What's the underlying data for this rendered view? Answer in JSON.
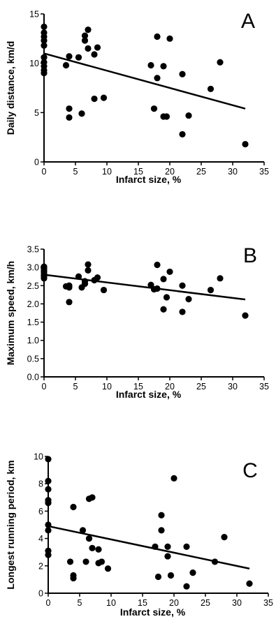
{
  "chart_data": [
    {
      "type": "scatter",
      "panel_label": "A",
      "xlabel": "Infarct size, %",
      "ylabel": "Daily distance, km/d",
      "xlim": [
        0,
        35
      ],
      "ylim": [
        0,
        15
      ],
      "xticks": [
        "0",
        "5",
        "10",
        "15",
        "20",
        "25",
        "30",
        "35"
      ],
      "yticks": [
        "0",
        "5",
        "10",
        "15"
      ],
      "points": [
        [
          0,
          13.7
        ],
        [
          0,
          13.1
        ],
        [
          0,
          12.7
        ],
        [
          0,
          12.3
        ],
        [
          0,
          11.8
        ],
        [
          0,
          10.6
        ],
        [
          0,
          10.1
        ],
        [
          0,
          9.7
        ],
        [
          0,
          9.3
        ],
        [
          0,
          9.0
        ],
        [
          3.5,
          9.8
        ],
        [
          4,
          10.7
        ],
        [
          4,
          5.4
        ],
        [
          4,
          4.5
        ],
        [
          5.5,
          10.6
        ],
        [
          6,
          4.9
        ],
        [
          6.5,
          12.8
        ],
        [
          6.5,
          12.3
        ],
        [
          7,
          13.4
        ],
        [
          7,
          11.5
        ],
        [
          8,
          10.9
        ],
        [
          8.5,
          11.6
        ],
        [
          8,
          6.4
        ],
        [
          9.5,
          6.5
        ],
        [
          17,
          9.8
        ],
        [
          17.5,
          5.4
        ],
        [
          18,
          12.7
        ],
        [
          18,
          8.5
        ],
        [
          19,
          9.7
        ],
        [
          19,
          4.6
        ],
        [
          19.5,
          4.6
        ],
        [
          20,
          12.5
        ],
        [
          22,
          8.9
        ],
        [
          22,
          2.8
        ],
        [
          23,
          4.7
        ],
        [
          26.5,
          7.4
        ],
        [
          28,
          10.1
        ],
        [
          32,
          1.8
        ]
      ],
      "fit_line": {
        "x": [
          0,
          32
        ],
        "y": [
          11.0,
          5.4
        ]
      }
    },
    {
      "type": "scatter",
      "panel_label": "B",
      "xlabel": "Infarct size, %",
      "ylabel": "Maximum speed, km/h",
      "xlim": [
        0,
        35
      ],
      "ylim": [
        0,
        3.5
      ],
      "xticks": [
        "0",
        "5",
        "10",
        "15",
        "20",
        "25",
        "30",
        "35"
      ],
      "yticks": [
        "0.0",
        "0.5",
        "1.0",
        "1.5",
        "2.0",
        "2.5",
        "3.0",
        "3.5"
      ],
      "points": [
        [
          0,
          3.02
        ],
        [
          0,
          2.97
        ],
        [
          0,
          2.92
        ],
        [
          0,
          2.88
        ],
        [
          0,
          2.83
        ],
        [
          0,
          2.78
        ],
        [
          0,
          2.74
        ],
        [
          0,
          2.7
        ],
        [
          3.5,
          2.48
        ],
        [
          4,
          2.5
        ],
        [
          4,
          2.45
        ],
        [
          4,
          2.05
        ],
        [
          5.5,
          2.75
        ],
        [
          6,
          2.45
        ],
        [
          6.5,
          2.55
        ],
        [
          6.5,
          2.62
        ],
        [
          7,
          3.08
        ],
        [
          7,
          2.92
        ],
        [
          8,
          2.65
        ],
        [
          8.5,
          2.72
        ],
        [
          9.5,
          2.38
        ],
        [
          17,
          2.52
        ],
        [
          17.5,
          2.4
        ],
        [
          18,
          3.07
        ],
        [
          18,
          2.42
        ],
        [
          19,
          1.85
        ],
        [
          19,
          2.68
        ],
        [
          19.5,
          2.18
        ],
        [
          20,
          2.88
        ],
        [
          22,
          2.5
        ],
        [
          22,
          1.78
        ],
        [
          23,
          2.13
        ],
        [
          26.5,
          2.38
        ],
        [
          28,
          2.7
        ],
        [
          32,
          1.68
        ]
      ],
      "fit_line": {
        "x": [
          0,
          32
        ],
        "y": [
          2.8,
          2.12
        ]
      }
    },
    {
      "type": "scatter",
      "panel_label": "C",
      "xlabel": "Infarct size, %",
      "ylabel": "Longest running period, km",
      "xlim": [
        0,
        35
      ],
      "ylim": [
        0,
        10
      ],
      "xticks": [
        "0",
        "5",
        "10",
        "15",
        "20",
        "25",
        "30",
        "35"
      ],
      "yticks": [
        "0",
        "2",
        "4",
        "6",
        "8",
        "10"
      ],
      "points": [
        [
          0,
          9.8
        ],
        [
          0,
          8.2
        ],
        [
          0,
          7.6
        ],
        [
          0,
          6.8
        ],
        [
          0,
          6.6
        ],
        [
          0,
          5.0
        ],
        [
          0,
          4.6
        ],
        [
          0,
          3.1
        ],
        [
          0,
          2.8
        ],
        [
          3.5,
          2.3
        ],
        [
          4,
          6.3
        ],
        [
          4,
          1.3
        ],
        [
          4,
          1.1
        ],
        [
          5.5,
          4.6
        ],
        [
          6,
          2.3
        ],
        [
          6.5,
          4.0
        ],
        [
          6.5,
          6.9
        ],
        [
          7,
          7.0
        ],
        [
          7,
          3.3
        ],
        [
          8,
          3.2
        ],
        [
          8,
          2.2
        ],
        [
          8.5,
          2.3
        ],
        [
          9.5,
          1.8
        ],
        [
          17,
          3.4
        ],
        [
          17.5,
          1.2
        ],
        [
          18,
          5.7
        ],
        [
          18,
          4.6
        ],
        [
          19,
          3.4
        ],
        [
          19,
          2.7
        ],
        [
          19.5,
          1.3
        ],
        [
          20,
          8.4
        ],
        [
          22,
          3.4
        ],
        [
          22,
          0.5
        ],
        [
          23,
          1.5
        ],
        [
          26.5,
          2.3
        ],
        [
          28,
          4.1
        ],
        [
          32,
          0.7
        ]
      ],
      "fit_line": {
        "x": [
          0,
          32
        ],
        "y": [
          4.9,
          1.8
        ]
      }
    }
  ]
}
